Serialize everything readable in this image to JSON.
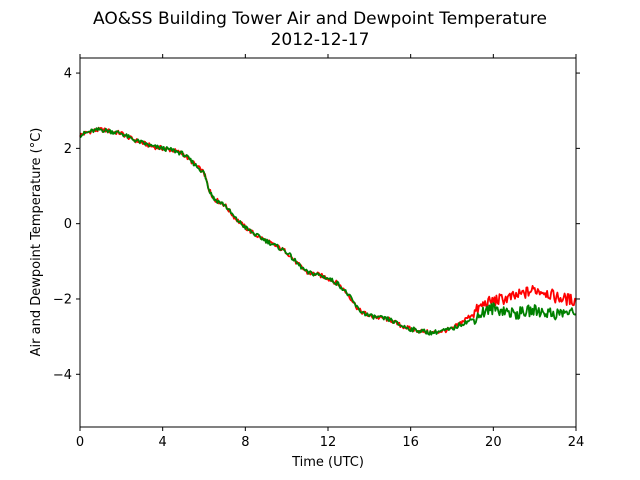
{
  "chart_data": {
    "type": "line",
    "title": "AO&SS Building Tower Air and Dewpoint Temperature",
    "subtitle": "2012-12-17",
    "xlabel": "Time (UTC)",
    "ylabel": "Air and Dewpoint Temperature (°C)",
    "xlim": [
      0,
      24
    ],
    "ylim": [
      -5.4,
      4.4
    ],
    "x_ticks": [
      0,
      4,
      8,
      12,
      16,
      20,
      24
    ],
    "y_ticks": [
      -4,
      -2,
      0,
      2,
      4
    ],
    "grid": false,
    "legend": "none",
    "series": [
      {
        "color": "#ff0000",
        "x": [
          0,
          0.5,
          1,
          1.5,
          2,
          2.5,
          3,
          3.5,
          4,
          4.5,
          5,
          5.5,
          6,
          6.25,
          6.5,
          7,
          7.5,
          8,
          8.5,
          9,
          9.5,
          10,
          10.5,
          11,
          11.5,
          12,
          12.5,
          13,
          13.5,
          14,
          14.5,
          15,
          15.5,
          16,
          16.5,
          17,
          17.5,
          18,
          18.5,
          19,
          19.5,
          20,
          20.5,
          21,
          21.5,
          22,
          22.5,
          23,
          23.5,
          24
        ],
        "y": [
          2.35,
          2.45,
          2.5,
          2.45,
          2.4,
          2.25,
          2.15,
          2.05,
          2.0,
          1.95,
          1.85,
          1.6,
          1.35,
          0.9,
          0.65,
          0.5,
          0.15,
          -0.1,
          -0.3,
          -0.45,
          -0.6,
          -0.75,
          -1.05,
          -1.3,
          -1.35,
          -1.45,
          -1.6,
          -1.9,
          -2.3,
          -2.45,
          -2.5,
          -2.55,
          -2.7,
          -2.8,
          -2.85,
          -2.9,
          -2.85,
          -2.8,
          -2.6,
          -2.4,
          -2.15,
          -2.05,
          -2.0,
          -1.95,
          -1.85,
          -1.75,
          -1.8,
          -1.95,
          -2.0,
          -2.05
        ]
      },
      {
        "color": "#008000",
        "x": [
          0,
          0.5,
          1,
          1.5,
          2,
          2.5,
          3,
          3.5,
          4,
          4.5,
          5,
          5.5,
          6,
          6.25,
          6.5,
          7,
          7.5,
          8,
          8.5,
          9,
          9.5,
          10,
          10.5,
          11,
          11.5,
          12,
          12.5,
          13,
          13.5,
          14,
          14.5,
          15,
          15.5,
          16,
          16.5,
          17,
          17.5,
          18,
          18.5,
          19,
          19.5,
          20,
          20.5,
          21,
          21.5,
          22,
          22.5,
          23,
          23.5,
          24
        ],
        "y": [
          2.35,
          2.45,
          2.5,
          2.45,
          2.4,
          2.25,
          2.15,
          2.05,
          2.0,
          1.95,
          1.85,
          1.6,
          1.35,
          0.9,
          0.65,
          0.5,
          0.15,
          -0.1,
          -0.3,
          -0.45,
          -0.6,
          -0.75,
          -1.05,
          -1.3,
          -1.35,
          -1.45,
          -1.6,
          -1.9,
          -2.3,
          -2.45,
          -2.5,
          -2.55,
          -2.7,
          -2.8,
          -2.85,
          -2.9,
          -2.85,
          -2.8,
          -2.65,
          -2.55,
          -2.35,
          -2.25,
          -2.3,
          -2.4,
          -2.35,
          -2.3,
          -2.35,
          -2.4,
          -2.35,
          -2.4
        ]
      }
    ]
  }
}
